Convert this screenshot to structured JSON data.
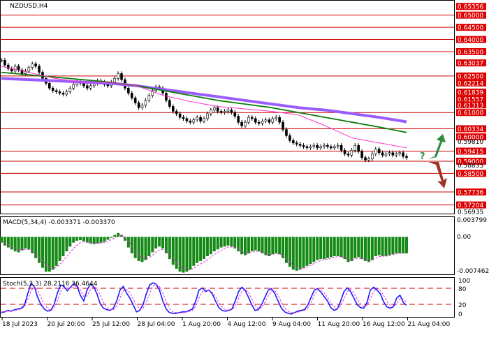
{
  "chart_data": [
    {
      "type": "line",
      "title": "NZDUSD,H4",
      "symbol": "NZDUSD",
      "timeframe": "H4",
      "ylim": [
        0.56935,
        0.65535
      ],
      "x_tick_labels": [
        "18 Jul 2023",
        "20 Jul 20:00",
        "25 Jul 12:00",
        "28 Jul 04:00",
        "1 Aug 20:00",
        "4 Aug 12:00",
        "9 Aug 04:00",
        "11 Aug 20:00",
        "16 Aug 12:00",
        "21 Aug 04:00"
      ],
      "price_levels": [
        {
          "label": "0.65356",
          "value": 0.65356,
          "line": false
        },
        {
          "label": "0.65000",
          "value": 0.65,
          "line": true
        },
        {
          "label": "0.64500",
          "value": 0.645,
          "line": true
        },
        {
          "label": "0.64000",
          "value": 0.64,
          "line": true
        },
        {
          "label": "0.63500",
          "value": 0.635,
          "line": true
        },
        {
          "label": "0.63037",
          "value": 0.63037,
          "line": false
        },
        {
          "label": "0.62500",
          "value": 0.625,
          "line": true
        },
        {
          "label": "0.62214",
          "value": 0.62214,
          "line": false
        },
        {
          "label": "0.61839",
          "value": 0.61839,
          "line": false
        },
        {
          "label": "0.61557",
          "value": 0.61557,
          "line": false
        },
        {
          "label": "0.61313",
          "value": 0.61313,
          "line": false
        },
        {
          "label": "0.61000",
          "value": 0.61,
          "line": true
        },
        {
          "label": "0.60334",
          "value": 0.60334,
          "line": true
        },
        {
          "label": "0.60000",
          "value": 0.6,
          "line": false
        },
        {
          "label": "0.59415",
          "value": 0.59415,
          "line": true
        },
        {
          "label": "0.59000",
          "value": 0.59,
          "line": true
        },
        {
          "label": "0.58500",
          "value": 0.585,
          "line": true
        },
        {
          "label": "0.57736",
          "value": 0.57736,
          "line": true
        },
        {
          "label": "0.57204",
          "value": 0.57204,
          "line": true
        }
      ],
      "plain_axis_labels": [
        {
          "label": "0.59810",
          "value": 0.5981
        },
        {
          "label": "0.58835",
          "value": 0.58835
        },
        {
          "label": "0.56935",
          "value": 0.56935
        }
      ],
      "candles_close": [
        0.6315,
        0.6295,
        0.628,
        0.627,
        0.629,
        0.6275,
        0.626,
        0.627,
        0.6285,
        0.63,
        0.629,
        0.6265,
        0.624,
        0.622,
        0.62,
        0.619,
        0.6185,
        0.618,
        0.6175,
        0.6185,
        0.62,
        0.6215,
        0.6225,
        0.622,
        0.621,
        0.62,
        0.621,
        0.622,
        0.623,
        0.6225,
        0.6215,
        0.621,
        0.6225,
        0.624,
        0.626,
        0.6235,
        0.62,
        0.618,
        0.616,
        0.614,
        0.612,
        0.613,
        0.615,
        0.617,
        0.619,
        0.6205,
        0.62,
        0.618,
        0.615,
        0.6125,
        0.6105,
        0.6095,
        0.608,
        0.6075,
        0.6065,
        0.606,
        0.607,
        0.608,
        0.6065,
        0.6075,
        0.6095,
        0.611,
        0.612,
        0.6105,
        0.61,
        0.6105,
        0.611,
        0.61,
        0.6085,
        0.606,
        0.6045,
        0.606,
        0.608,
        0.6075,
        0.606,
        0.6055,
        0.6065,
        0.607,
        0.606,
        0.6075,
        0.608,
        0.606,
        0.603,
        0.6005,
        0.5985,
        0.5975,
        0.597,
        0.5965,
        0.596,
        0.5955,
        0.596,
        0.5965,
        0.5955,
        0.596,
        0.5965,
        0.596,
        0.5955,
        0.596,
        0.5965,
        0.5945,
        0.593,
        0.5925,
        0.5945,
        0.5965,
        0.594,
        0.5915,
        0.5905,
        0.591,
        0.593,
        0.595,
        0.5935,
        0.5925,
        0.593,
        0.5935,
        0.5925,
        0.593,
        0.5935,
        0.592,
        0.5915
      ],
      "moving_averages": [
        {
          "color": "#9a5cff",
          "values": [
            0.624,
            0.6235,
            0.623,
            0.6225,
            0.622,
            0.621,
            0.6195,
            0.618,
            0.6165,
            0.615,
            0.6135,
            0.612,
            0.611,
            0.6095,
            0.608,
            0.6062
          ]
        },
        {
          "color": "#0a7d0a",
          "values": [
            0.6265,
            0.6255,
            0.6245,
            0.6235,
            0.6225,
            0.621,
            0.619,
            0.617,
            0.615,
            0.6135,
            0.612,
            0.61,
            0.608,
            0.606,
            0.604,
            0.6018
          ]
        },
        {
          "color": "#ff33cc",
          "values": [
            0.629,
            0.6265,
            0.624,
            0.6225,
            0.6225,
            0.621,
            0.617,
            0.6145,
            0.6125,
            0.6115,
            0.6105,
            0.609,
            0.6045,
            0.5995,
            0.5975,
            0.5955
          ]
        }
      ],
      "forecast_arrows": [
        {
          "direction": "up",
          "color": "#2e8b3a"
        },
        {
          "direction": "down",
          "color": "#a0342b"
        }
      ],
      "forecast_mark": "?"
    },
    {
      "type": "bar",
      "title": "MACD(5,34,4) -0.003371 -0.003370",
      "ylim": [
        -0.007462,
        0.003799
      ],
      "axis_labels": [
        "0.003799",
        "0.00",
        "-0.007462"
      ],
      "histogram": [
        -0.0012,
        -0.0018,
        -0.0022,
        -0.0026,
        -0.003,
        -0.0032,
        -0.0028,
        -0.0024,
        -0.0026,
        -0.0034,
        -0.0044,
        -0.0054,
        -0.0064,
        -0.0072,
        -0.0072,
        -0.0068,
        -0.006,
        -0.005,
        -0.004,
        -0.003,
        -0.002,
        -0.0012,
        -0.0008,
        -0.0007,
        -0.0009,
        -0.0012,
        -0.0014,
        -0.0015,
        -0.0014,
        -0.0012,
        -0.001,
        -0.0006,
        -0.0002,
        0.0004,
        0.0008,
        0.0004,
        -0.0008,
        -0.0022,
        -0.0034,
        -0.0044,
        -0.005,
        -0.0052,
        -0.0048,
        -0.004,
        -0.0032,
        -0.0024,
        -0.002,
        -0.0024,
        -0.0034,
        -0.0046,
        -0.0058,
        -0.0066,
        -0.0072,
        -0.0074,
        -0.0072,
        -0.0068,
        -0.006,
        -0.0054,
        -0.005,
        -0.0046,
        -0.004,
        -0.0036,
        -0.003,
        -0.0026,
        -0.0022,
        -0.002,
        -0.0018,
        -0.002,
        -0.0024,
        -0.003,
        -0.0036,
        -0.0038,
        -0.0034,
        -0.003,
        -0.0028,
        -0.003,
        -0.0034,
        -0.0038,
        -0.004,
        -0.0036,
        -0.0034,
        -0.0036,
        -0.0044,
        -0.0054,
        -0.0062,
        -0.0068,
        -0.007,
        -0.0068,
        -0.0064,
        -0.006,
        -0.0056,
        -0.0052,
        -0.0048,
        -0.0046,
        -0.0046,
        -0.0044,
        -0.0042,
        -0.004,
        -0.004,
        -0.0042,
        -0.0046,
        -0.0052,
        -0.005,
        -0.0044,
        -0.0042,
        -0.0046,
        -0.005,
        -0.0052,
        -0.0048,
        -0.004,
        -0.0038,
        -0.004,
        -0.004,
        -0.0038,
        -0.0036,
        -0.0034,
        -0.0034,
        -0.0034,
        -0.0034
      ],
      "signal": [
        -0.0008,
        -0.0012,
        -0.0016,
        -0.002,
        -0.0024,
        -0.0027,
        -0.0027,
        -0.0026,
        -0.0026,
        -0.0029,
        -0.0035,
        -0.0042,
        -0.005,
        -0.0058,
        -0.0064,
        -0.0066,
        -0.0063,
        -0.0057,
        -0.0049,
        -0.0041,
        -0.0032,
        -0.0024,
        -0.0017,
        -0.0012,
        -0.001,
        -0.0011,
        -0.0012,
        -0.0013,
        -0.0013,
        -0.0013,
        -0.0012,
        -0.0009,
        -0.0006,
        -0.0002,
        0.0002,
        0.0003,
        -0.0001,
        -0.0009,
        -0.0019,
        -0.0029,
        -0.0038,
        -0.0044,
        -0.0046,
        -0.0043,
        -0.0038,
        -0.0032,
        -0.0027,
        -0.0026,
        -0.0029,
        -0.0036,
        -0.0044,
        -0.0053,
        -0.0061,
        -0.0066,
        -0.0068,
        -0.0068,
        -0.0065,
        -0.006,
        -0.0056,
        -0.0052,
        -0.0047,
        -0.0042,
        -0.0037,
        -0.0032,
        -0.0028,
        -0.0024,
        -0.0021,
        -0.0021,
        -0.0022,
        -0.0025,
        -0.003,
        -0.0034,
        -0.0034,
        -0.0032,
        -0.003,
        -0.003,
        -0.0032,
        -0.0035,
        -0.0037,
        -0.0036,
        -0.0035,
        -0.0035,
        -0.0039,
        -0.0045,
        -0.0052,
        -0.0059,
        -0.0064,
        -0.0066,
        -0.0065,
        -0.0063,
        -0.0059,
        -0.0055,
        -0.0052,
        -0.0049,
        -0.0047,
        -0.0046,
        -0.0044,
        -0.0042,
        -0.0041,
        -0.0041,
        -0.0043,
        -0.0047,
        -0.0048,
        -0.0046,
        -0.0044,
        -0.0045,
        -0.0047,
        -0.0049,
        -0.0048,
        -0.0044,
        -0.0041,
        -0.004,
        -0.004,
        -0.0039,
        -0.0037,
        -0.0035,
        -0.0034,
        -0.0034,
        -0.0034
      ],
      "bar_color": "#148a14",
      "signal_color": "#e62ee6"
    },
    {
      "type": "line",
      "title": "Stoch(5,3,3) 28.2116 36.4644",
      "ylim": [
        0,
        100
      ],
      "axis_labels": [
        "100",
        "80",
        "20",
        "0"
      ],
      "levels": [
        80,
        20
      ],
      "series": [
        {
          "color": "#1a1aff",
          "values": [
            8,
            10,
            14,
            12,
            16,
            18,
            20,
            28,
            60,
            88,
            80,
            50,
            30,
            18,
            12,
            14,
            30,
            62,
            84,
            80,
            68,
            78,
            88,
            80,
            55,
            40,
            70,
            86,
            80,
            60,
            32,
            20,
            16,
            14,
            20,
            40,
            70,
            80,
            62,
            48,
            30,
            10,
            14,
            30,
            60,
            84,
            90,
            86,
            70,
            40,
            18,
            8,
            6,
            6,
            8,
            10,
            10,
            14,
            18,
            40,
            70,
            76,
            66,
            70,
            60,
            40,
            22,
            14,
            12,
            14,
            18,
            40,
            66,
            78,
            70,
            50,
            30,
            14,
            16,
            30,
            50,
            70,
            74,
            60,
            40,
            20,
            10,
            6,
            4,
            8,
            12,
            14,
            16,
            28,
            50,
            70,
            74,
            64,
            52,
            40,
            22,
            14,
            18,
            40,
            66,
            76,
            66,
            48,
            30,
            22,
            20,
            36,
            70,
            78,
            70,
            60,
            38,
            24,
            20,
            24,
            48,
            56,
            36,
            28
          ]
        },
        {
          "color": "#e62ee6",
          "dashed": true,
          "values": [
            10,
            10,
            12,
            12,
            14,
            16,
            18,
            24,
            44,
            68,
            80,
            70,
            50,
            32,
            20,
            14,
            20,
            40,
            66,
            78,
            74,
            74,
            80,
            82,
            70,
            52,
            54,
            70,
            80,
            74,
            56,
            36,
            22,
            16,
            16,
            26,
            48,
            68,
            72,
            62,
            46,
            28,
            18,
            20,
            36,
            62,
            80,
            86,
            80,
            62,
            38,
            20,
            10,
            8,
            7,
            8,
            9,
            11,
            14,
            26,
            48,
            66,
            70,
            68,
            64,
            52,
            36,
            22,
            16,
            14,
            16,
            26,
            46,
            66,
            72,
            64,
            46,
            28,
            18,
            22,
            36,
            54,
            68,
            68,
            56,
            36,
            20,
            12,
            8,
            7,
            9,
            12,
            14,
            20,
            36,
            56,
            70,
            70,
            62,
            50,
            36,
            24,
            18,
            26,
            46,
            66,
            72,
            62,
            46,
            32,
            24,
            28,
            46,
            66,
            74,
            70,
            56,
            40,
            28,
            24,
            32,
            46,
            46,
            36
          ]
        }
      ]
    }
  ]
}
